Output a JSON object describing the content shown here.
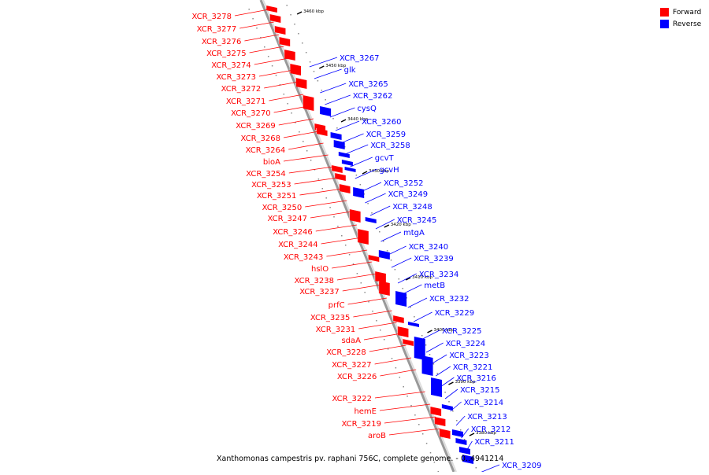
{
  "colors": {
    "forward": "#ff0000",
    "reverse": "#0000ff",
    "axis": "#999999",
    "tick": "#000000"
  },
  "legend": [
    {
      "label": "Forward",
      "color": "#ff0000"
    },
    {
      "label": "Reverse",
      "color": "#0000ff"
    }
  ],
  "caption": "Xanthomonas campestris pv. raphani 756C, complete genome. - 0..4941214",
  "ticks": [
    "3460 kbp",
    "3450 kbp",
    "3440 kbp",
    "3430 kbp",
    "3420 kbp",
    "3410 kbp",
    "3400 kbp",
    "3390 kbp",
    "3380 kbp"
  ],
  "forward_genes": [
    "XCR_3278",
    "XCR_3277",
    "XCR_3276",
    "XCR_3275",
    "XCR_3274",
    "XCR_3273",
    "XCR_3272",
    "XCR_3271",
    "XCR_3270",
    "XCR_3269",
    "XCR_3268",
    "XCR_3264",
    "bioA",
    "XCR_3254",
    "XCR_3253",
    "XCR_3251",
    "XCR_3250",
    "XCR_3247",
    "XCR_3246",
    "XCR_3244",
    "XCR_3243",
    "hslO",
    "XCR_3238",
    "XCR_3237",
    "prfC",
    "XCR_3235",
    "XCR_3231",
    "sdaA",
    "XCR_3228",
    "XCR_3227",
    "XCR_3226",
    "XCR_3222",
    "hemE",
    "XCR_3219",
    "aroB"
  ],
  "reverse_genes": [
    "XCR_3267",
    "glk",
    "XCR_3265",
    "XCR_3262",
    "cysQ",
    "XCR_3260",
    "XCR_3259",
    "XCR_3258",
    "gcvT",
    "gcvH",
    "XCR_3252",
    "XCR_3249",
    "XCR_3248",
    "XCR_3245",
    "mtgA",
    "XCR_3240",
    "XCR_3239",
    "XCR_3234",
    "metB",
    "XCR_3232",
    "XCR_3229",
    "XCR_3225",
    "XCR_3224",
    "XCR_3223",
    "XCR_3221",
    "XCR_3216",
    "XCR_3215",
    "XCR_3214",
    "XCR_3213",
    "XCR_3212",
    "XCR_3211",
    "XCR_3209"
  ]
}
